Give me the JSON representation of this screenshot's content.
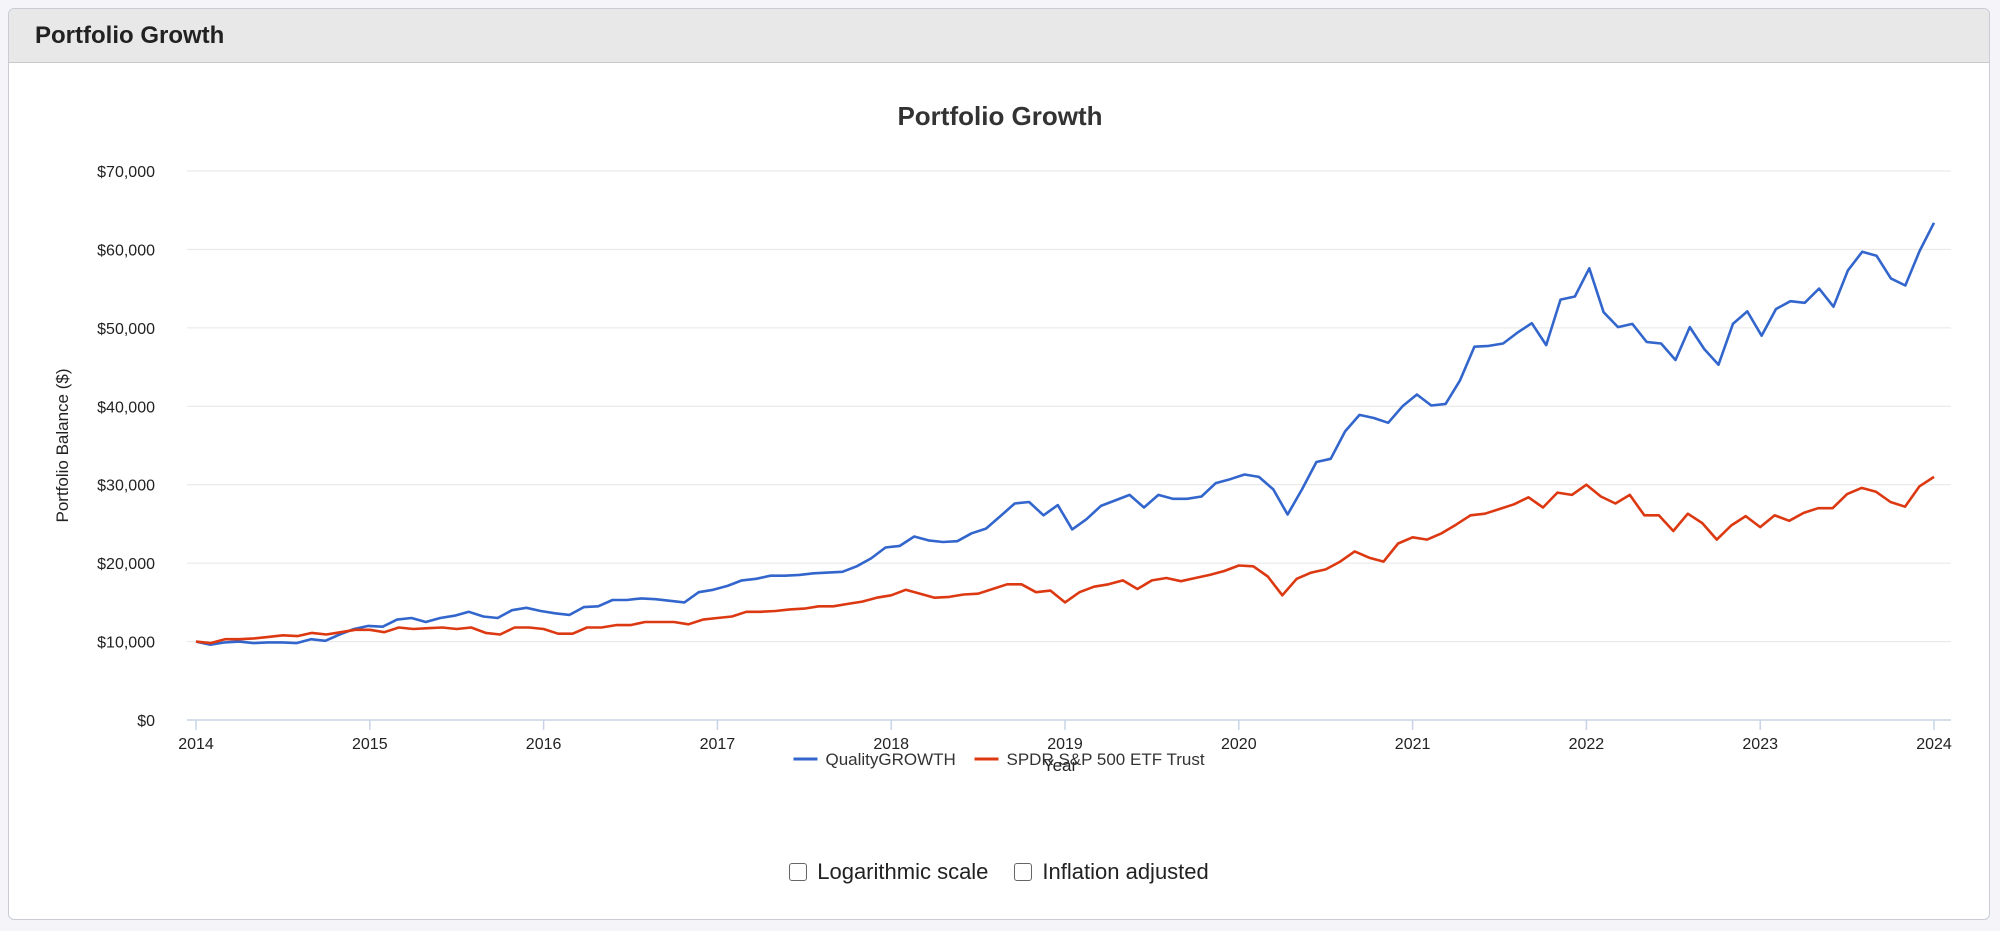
{
  "panel": {
    "title": "Portfolio Growth"
  },
  "options": {
    "log_label": "Logarithmic scale",
    "inflation_label": "Inflation adjusted"
  },
  "chart_data": {
    "type": "line",
    "title": "Portfolio Growth",
    "xlabel": "Year",
    "ylabel": "Portfolio Balance ($)",
    "ylim": [
      0,
      70000
    ],
    "xlim": [
      2014.0,
      2024.0
    ],
    "yticks": [
      0,
      10000,
      20000,
      30000,
      40000,
      50000,
      60000,
      70000
    ],
    "ytick_labels": [
      "$0",
      "$10,000",
      "$20,000",
      "$30,000",
      "$40,000",
      "$50,000",
      "$60,000",
      "$70,000"
    ],
    "xticks": [
      2014,
      2015,
      2016,
      2017,
      2018,
      2019,
      2020,
      2021,
      2022,
      2023,
      2024
    ],
    "xtick_labels": [
      "2014",
      "2015",
      "2016",
      "2017",
      "2018",
      "2019",
      "2020",
      "2021",
      "2022",
      "2023",
      "2024"
    ],
    "legend_position": "bottom-center",
    "series": [
      {
        "name": "QualityGROWTH",
        "color": "#3366cc",
        "values": [
          10000,
          9600,
          9900,
          10000,
          9800,
          9900,
          9900,
          9800,
          10300,
          10100,
          10900,
          11600,
          12000,
          11900,
          12800,
          13000,
          12500,
          13000,
          13300,
          13800,
          13200,
          13000,
          14000,
          14300,
          13900,
          13600,
          13400,
          14400,
          14500,
          15300,
          15300,
          15500,
          15400,
          15200,
          15000,
          16300,
          16600,
          17100,
          17800,
          18000,
          18400,
          18400,
          18500,
          18700,
          18800,
          18900,
          19600,
          20600,
          22000,
          22200,
          23400,
          22900,
          22700,
          22800,
          23800,
          24400,
          26000,
          27600,
          27800,
          26100,
          27400,
          24300,
          25600,
          27300,
          28000,
          28700,
          27100,
          28700,
          28200,
          28200,
          28500,
          30200,
          30700,
          31300,
          31000,
          29400,
          26200,
          29400,
          32900,
          33300,
          36800,
          38900,
          38500,
          37900,
          40000,
          41500,
          40100,
          40300,
          43300,
          47600,
          47700,
          48000,
          49400,
          50600,
          47800,
          53600,
          54000,
          57600,
          52000,
          50100,
          50500,
          48200,
          48000,
          45900,
          50100,
          47300,
          45300,
          50500,
          52100,
          49000,
          52400,
          53400,
          53200,
          55000,
          52700,
          57300,
          59700,
          59200,
          56300,
          55400,
          59800,
          63400
        ]
      },
      {
        "name": "SPDR S&P 500 ETF Trust",
        "color": "#dc3912",
        "values": [
          10000,
          9800,
          10300,
          10300,
          10400,
          10600,
          10800,
          10700,
          11100,
          10900,
          11200,
          11500,
          11500,
          11200,
          11800,
          11600,
          11700,
          11800,
          11600,
          11800,
          11100,
          10900,
          11800,
          11800,
          11600,
          11000,
          11000,
          11800,
          11800,
          12100,
          12100,
          12500,
          12500,
          12500,
          12200,
          12800,
          13000,
          13200,
          13800,
          13800,
          13900,
          14100,
          14200,
          14500,
          14500,
          14800,
          15100,
          15600,
          15900,
          16600,
          16100,
          15600,
          15700,
          16000,
          16100,
          16700,
          17300,
          17300,
          16300,
          16500,
          15000,
          16300,
          17000,
          17300,
          17800,
          16700,
          17800,
          18100,
          17700,
          18100,
          18500,
          19000,
          19700,
          19600,
          18300,
          15900,
          18000,
          18800,
          19200,
          20200,
          21500,
          20700,
          20200,
          22500,
          23300,
          23000,
          23800,
          24900,
          26100,
          26300,
          26900,
          27500,
          28400,
          27100,
          29000,
          28700,
          30000,
          28500,
          27600,
          28700,
          26100,
          26100,
          24100,
          26300,
          25100,
          23000,
          24800,
          26000,
          24600,
          26100,
          25400,
          26400,
          27000,
          27000,
          28800,
          29600,
          29100,
          27800,
          27200,
          29800,
          31000
        ]
      }
    ]
  }
}
